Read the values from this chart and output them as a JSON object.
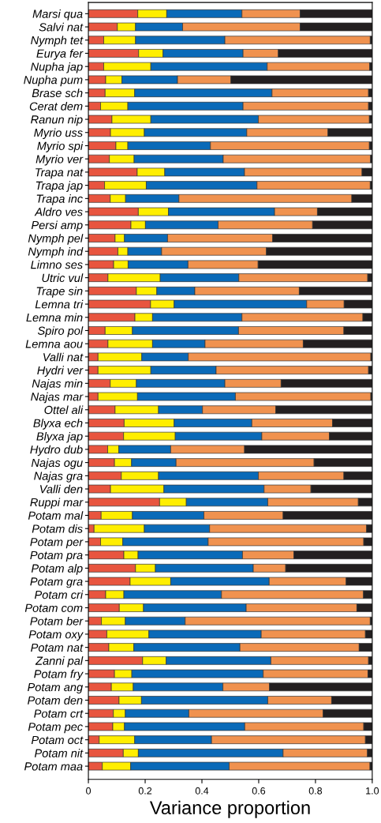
{
  "chart_data": {
    "type": "bar",
    "orientation": "horizontal",
    "stacked": true,
    "xlabel": "Variance proportion",
    "categories": [
      "Marsi qua",
      "Salvi nat",
      "Nymph tet",
      "Eurya fer",
      "Nupha jap",
      "Nupha pum",
      "Brase sch",
      "Cerat dem",
      "Ranun nip",
      "Myrio uss",
      "Myrio spi",
      "Myrio ver",
      "Trapa nat",
      "Trapa jap",
      "Trapa inc",
      "Aldro ves",
      "Persi amp",
      "Nymph pel",
      "Nymph ind",
      "Limno ses",
      "Utric vul",
      "Trape sin",
      "Lemna tri",
      "Lemna min",
      "Spiro pol",
      "Lemna aou",
      "Valli nat",
      "Hydri ver",
      "Najas min",
      "Najas mar",
      "Ottel ali",
      "Blyxa ech",
      "Blyxa jap",
      "Hydro dub",
      "Najas ogu",
      "Najas gra",
      "Valli den",
      "Ruppi mar",
      "Potam mal",
      "Potam dis",
      "Potam per",
      "Potam pra",
      "Potam alp",
      "Potam gra",
      "Potam cri",
      "Potam com",
      "Potam ber",
      "Potam oxy",
      "Potam nat",
      "Zanni pal",
      "Potam fry",
      "Potam ang",
      "Potam den",
      "Potam crt",
      "Potam pec",
      "Potam oct",
      "Potam nit",
      "Potam maa"
    ],
    "series": [
      {
        "color": "#e8553f",
        "values": [
          0.174,
          0.102,
          0.054,
          0.177,
          0.054,
          0.061,
          0.059,
          0.043,
          0.083,
          0.078,
          0.097,
          0.074,
          0.172,
          0.057,
          0.077,
          0.176,
          0.15,
          0.094,
          0.104,
          0.089,
          0.069,
          0.169,
          0.219,
          0.164,
          0.059,
          0.069,
          0.034,
          0.034,
          0.077,
          0.034,
          0.094,
          0.126,
          0.124,
          0.068,
          0.092,
          0.116,
          0.078,
          0.251,
          0.045,
          0.02,
          0.043,
          0.125,
          0.166,
          0.147,
          0.061,
          0.109,
          0.046,
          0.065,
          0.072,
          0.191,
          0.092,
          0.081,
          0.108,
          0.088,
          0.086,
          0.038,
          0.123,
          0.049
        ]
      },
      {
        "color": "#ffee00",
        "values": [
          0.102,
          0.064,
          0.112,
          0.086,
          0.166,
          0.057,
          0.104,
          0.096,
          0.137,
          0.119,
          0.042,
          0.087,
          0.097,
          0.147,
          0.054,
          0.106,
          0.051,
          0.033,
          0.035,
          0.051,
          0.184,
          0.072,
          0.083,
          0.062,
          0.096,
          0.157,
          0.154,
          0.186,
          0.092,
          0.139,
          0.153,
          0.176,
          0.182,
          0.039,
          0.06,
          0.131,
          0.188,
          0.094,
          0.11,
          0.177,
          0.078,
          0.05,
          0.07,
          0.143,
          0.064,
          0.085,
          0.084,
          0.148,
          0.088,
          0.083,
          0.061,
          0.077,
          0.079,
          0.042,
          0.041,
          0.125,
          0.053,
          0.1
        ]
      },
      {
        "color": "#0a6ab8",
        "values": [
          0.265,
          0.166,
          0.315,
          0.282,
          0.41,
          0.196,
          0.484,
          0.406,
          0.379,
          0.361,
          0.291,
          0.314,
          0.281,
          0.39,
          0.188,
          0.374,
          0.256,
          0.152,
          0.119,
          0.211,
          0.277,
          0.134,
          0.467,
          0.315,
          0.374,
          0.185,
          0.164,
          0.23,
          0.312,
          0.345,
          0.155,
          0.274,
          0.305,
          0.183,
          0.157,
          0.352,
          0.353,
          0.287,
          0.252,
          0.23,
          0.301,
          0.368,
          0.345,
          0.347,
          0.344,
          0.362,
          0.211,
          0.396,
          0.374,
          0.369,
          0.463,
          0.316,
          0.445,
          0.224,
          0.424,
          0.271,
          0.51,
          0.347
        ]
      },
      {
        "color": "#f0924f",
        "values": [
          0.205,
          0.414,
          0.512,
          0.124,
          0.361,
          0.188,
          0.34,
          0.442,
          0.391,
          0.286,
          0.56,
          0.519,
          0.414,
          0.399,
          0.609,
          0.151,
          0.333,
          0.37,
          0.369,
          0.247,
          0.454,
          0.368,
          0.132,
          0.426,
          0.371,
          0.346,
          0.643,
          0.537,
          0.198,
          0.477,
          0.258,
          0.284,
          0.238,
          0.26,
          0.486,
          0.301,
          0.165,
          0.319,
          0.279,
          0.553,
          0.548,
          0.181,
          0.114,
          0.271,
          0.5,
          0.39,
          0.652,
          0.367,
          0.42,
          0.344,
          0.369,
          0.164,
          0.225,
          0.473,
          0.419,
          0.542,
          0.297,
          0.496
        ]
      },
      {
        "color": "#231f20",
        "values": [
          0.254,
          0.254,
          0.007,
          0.331,
          0.009,
          0.498,
          0.013,
          0.013,
          0.01,
          0.156,
          0.01,
          0.006,
          0.036,
          0.007,
          0.072,
          0.193,
          0.21,
          0.351,
          0.373,
          0.402,
          0.016,
          0.257,
          0.099,
          0.033,
          0.1,
          0.243,
          0.005,
          0.013,
          0.321,
          0.005,
          0.34,
          0.14,
          0.151,
          0.45,
          0.205,
          0.1,
          0.216,
          0.049,
          0.314,
          0.02,
          0.03,
          0.276,
          0.305,
          0.092,
          0.031,
          0.054,
          0.007,
          0.024,
          0.046,
          0.013,
          0.015,
          0.362,
          0.143,
          0.173,
          0.03,
          0.024,
          0.017,
          0.008
        ]
      }
    ],
    "xlim": [
      0,
      1
    ],
    "xticks": [
      0,
      0.2,
      0.4,
      0.6,
      0.8,
      {
        "value": 1,
        "label": "1.0"
      }
    ],
    "grid": false,
    "legend": false
  }
}
